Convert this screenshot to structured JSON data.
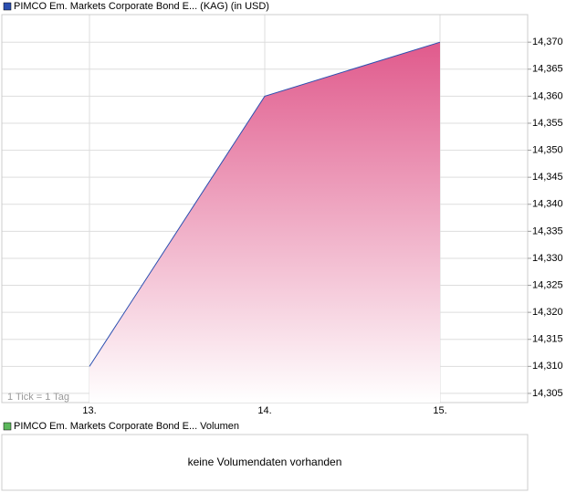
{
  "chart_data": {
    "type": "area",
    "legend_title": "PIMCO Em. Markets Corporate Bond E... (KAG) (in USD)",
    "note": "1 Tick = 1 Tag",
    "categories": [
      "13.",
      "14.",
      "15."
    ],
    "series": [
      {
        "name": "PIMCO Em. Markets Corporate Bond E... (KAG) (in USD)",
        "color": "#2b4fb0",
        "fill": "#e05a8c",
        "values": [
          14.31,
          14.36,
          14.37
        ]
      }
    ],
    "ylim": [
      14.3033,
      14.3751
    ],
    "yticks": [
      {
        "value": 14.305,
        "label": "14,305"
      },
      {
        "value": 14.31,
        "label": "14,310"
      },
      {
        "value": 14.315,
        "label": "14,315"
      },
      {
        "value": 14.32,
        "label": "14,320"
      },
      {
        "value": 14.325,
        "label": "14,325"
      },
      {
        "value": 14.33,
        "label": "14,330"
      },
      {
        "value": 14.335,
        "label": "14,335"
      },
      {
        "value": 14.34,
        "label": "14,340"
      },
      {
        "value": 14.345,
        "label": "14,345"
      },
      {
        "value": 14.35,
        "label": "14,350"
      },
      {
        "value": 14.355,
        "label": "14,355"
      },
      {
        "value": 14.36,
        "label": "14,360"
      },
      {
        "value": 14.365,
        "label": "14,365"
      },
      {
        "value": 14.37,
        "label": "14,370"
      }
    ],
    "grid": true
  },
  "volume_panel": {
    "legend": "PIMCO Em. Markets Corporate Bond E... Volumen",
    "color": "#5cb85c",
    "message": "keine Volumendaten vorhanden"
  }
}
